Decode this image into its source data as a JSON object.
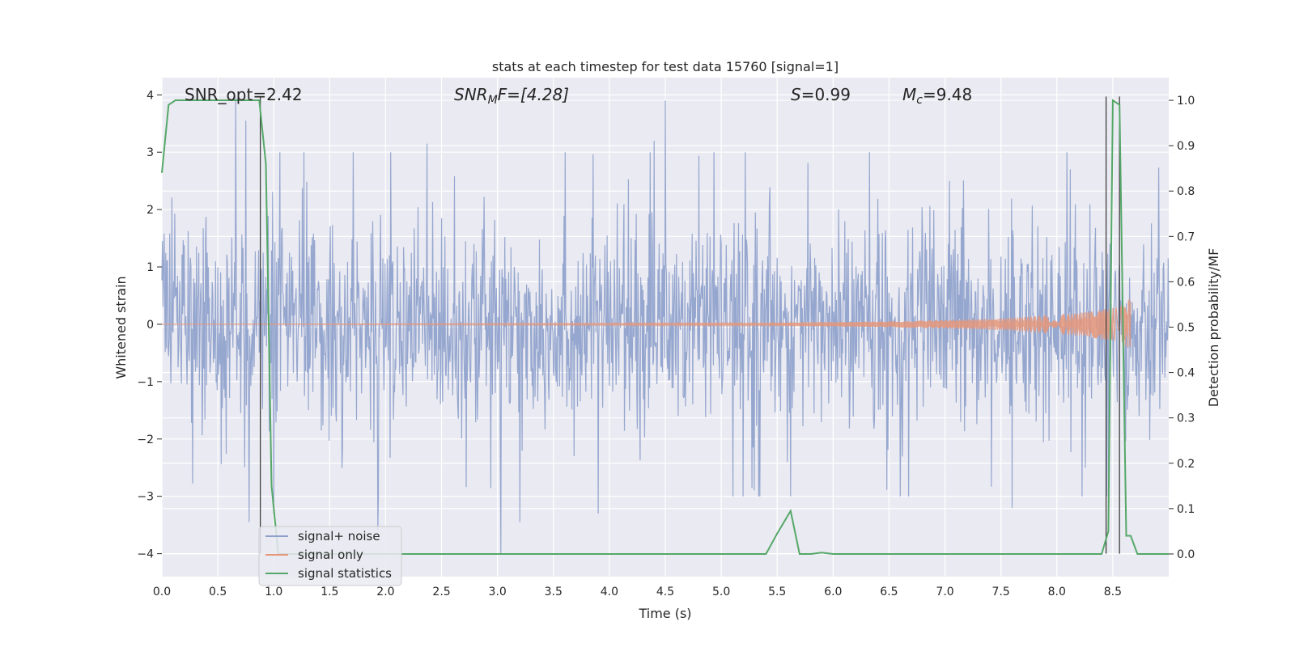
{
  "chart_data": {
    "type": "line",
    "title": "stats at each timestep for test data 15760 [signal=1]",
    "xlabel": "Time (s)",
    "ylabel": "Whitened strain",
    "y2label": "Detection probability/MF",
    "xlim": [
      0.0,
      9.0
    ],
    "ylim": [
      -4.4,
      4.3
    ],
    "y2lim": [
      -0.05,
      1.05
    ],
    "x_ticks": [
      "0.0",
      "0.5",
      "1.0",
      "1.5",
      "2.0",
      "2.5",
      "3.0",
      "3.5",
      "4.0",
      "4.5",
      "5.0",
      "5.5",
      "6.0",
      "6.5",
      "7.0",
      "7.5",
      "8.0",
      "8.5"
    ],
    "y_ticks": [
      "4",
      "3",
      "2",
      "1",
      "0",
      "−1",
      "−2",
      "−3",
      "−4"
    ],
    "y2_ticks": [
      "1.0",
      "0.9",
      "0.8",
      "0.7",
      "0.6",
      "0.5",
      "0.4",
      "0.3",
      "0.2",
      "0.1",
      "0.0"
    ],
    "grid": true,
    "legend_placement": "lower-left",
    "annotations": [
      {
        "id": "snr-opt",
        "text": "SNR_opt=2.42"
      },
      {
        "id": "snr-mf",
        "text": "SNRₘF=[4.28]",
        "italic_parts": true
      },
      {
        "id": "s-value",
        "text": "S=0.99"
      },
      {
        "id": "mc-value",
        "text": "Mᶜ=9.48"
      }
    ],
    "annot_parts": {
      "snr_opt": "SNR_opt=2.42",
      "snr_mf_main": "SNR",
      "snr_mf_sub": "M",
      "snr_mf_tail": "F=[4.28]",
      "s_sym": "S",
      "s_val": "=0.99",
      "mc_sym": "M",
      "mc_sub": "c",
      "mc_val": "=9.48"
    },
    "series": [
      {
        "name": "signal+ noise",
        "color": "#8da0cb",
        "style": "noise band, values roughly within ±1.6 with spikes to ±3.9",
        "typical_amplitude": 1.5,
        "peak_values": [
          {
            "x": 0.66,
            "y": 3.95
          },
          {
            "x": 0.75,
            "y": 3.55
          },
          {
            "x": 0.78,
            "y": -3.45
          },
          {
            "x": 1.0,
            "y": -3.3
          },
          {
            "x": 1.93,
            "y": -3.6
          },
          {
            "x": 2.37,
            "y": 3.15
          },
          {
            "x": 3.03,
            "y": -4.0
          },
          {
            "x": 3.2,
            "y": -3.45
          },
          {
            "x": 3.9,
            "y": -3.3
          },
          {
            "x": 4.4,
            "y": 3.2
          },
          {
            "x": 4.5,
            "y": 3.9
          },
          {
            "x": 6.6,
            "y": -3.0
          },
          {
            "x": 7.6,
            "y": -3.2
          }
        ]
      },
      {
        "name": "signal only",
        "color": "#e5967a",
        "style": "chirp growing in amplitude toward merger",
        "envelope": [
          {
            "x": 0.0,
            "a": 0.0
          },
          {
            "x": 5.3,
            "a": 0.02
          },
          {
            "x": 6.5,
            "a": 0.05
          },
          {
            "x": 7.5,
            "a": 0.1
          },
          {
            "x": 8.2,
            "a": 0.2
          },
          {
            "x": 8.55,
            "a": 0.3
          },
          {
            "x": 8.66,
            "a": 0.45
          },
          {
            "x": 8.67,
            "a": 0.0
          }
        ]
      },
      {
        "name": "signal statistics",
        "color": "#55a868",
        "axis": "right",
        "x": [
          0.0,
          0.06,
          0.12,
          0.2,
          0.3,
          0.5,
          0.7,
          0.82,
          0.87,
          0.93,
          0.98,
          1.04,
          1.1,
          3.0,
          5.4,
          5.5,
          5.62,
          5.7,
          5.8,
          5.9,
          6.0,
          8.0,
          8.4,
          8.46,
          8.5,
          8.56,
          8.62,
          8.66,
          8.72,
          9.0
        ],
        "values": [
          0.84,
          0.99,
          1.0,
          1.0,
          1.0,
          1.0,
          1.0,
          1.0,
          1.0,
          0.86,
          0.15,
          0.0,
          0.0,
          0.0,
          0.0,
          0.045,
          0.095,
          0.0,
          0.0,
          0.003,
          0.0,
          0.0,
          0.0,
          0.05,
          1.0,
          0.99,
          0.04,
          0.04,
          0.0,
          0.0
        ]
      }
    ],
    "vertical_lines": [
      {
        "x": 0.88,
        "color": "#404040"
      },
      {
        "x": 8.44,
        "color": "#404040"
      },
      {
        "x": 8.56,
        "color": "#404040"
      }
    ]
  }
}
